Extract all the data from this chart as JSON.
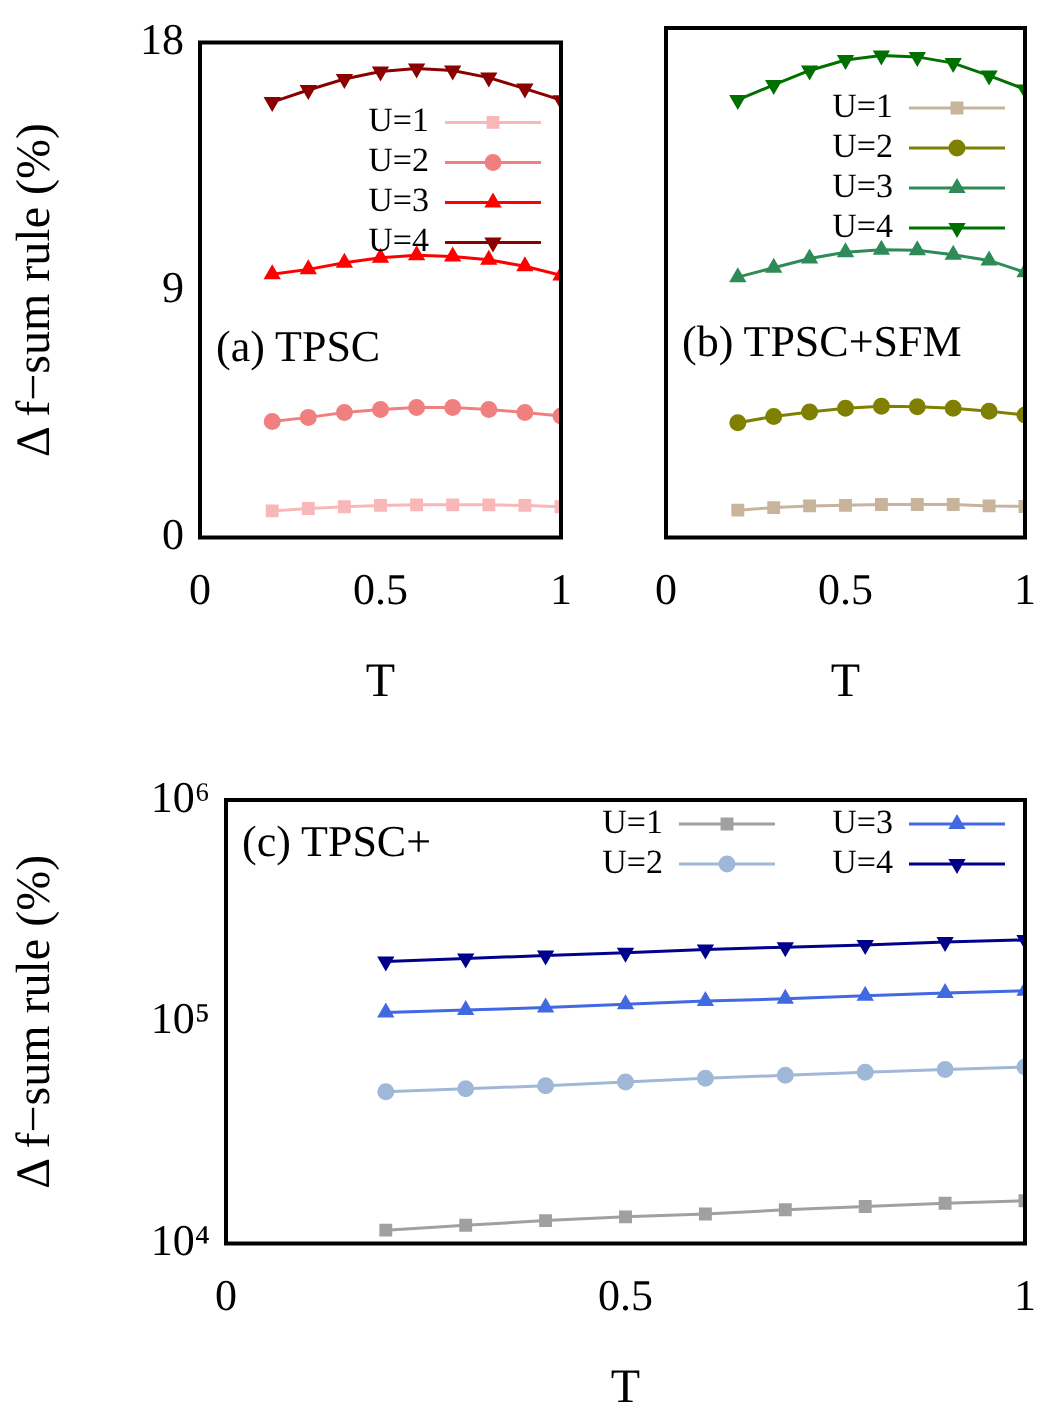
{
  "chart_data": [
    {
      "type": "line",
      "annotations": [
        "(a) TPSC"
      ],
      "xlabel": "T",
      "ylabel": "Δ f−sum rule (%)",
      "x": [
        0.2,
        0.3,
        0.4,
        0.5,
        0.6,
        0.7,
        0.8,
        0.9,
        1.0
      ],
      "xlim": [
        0,
        1
      ],
      "xticks": [
        0,
        0.5,
        1
      ],
      "ylim": [
        0,
        18
      ],
      "yticks": [
        0,
        9,
        18
      ],
      "legend": "top right",
      "grid": false,
      "series": [
        {
          "name": "U=1",
          "color": "#f8b8b8",
          "marker": "square",
          "values": [
            0.97,
            1.06,
            1.12,
            1.17,
            1.19,
            1.19,
            1.19,
            1.17,
            1.12
          ]
        },
        {
          "name": "U=2",
          "color": "#f08080",
          "marker": "circle",
          "values": [
            4.22,
            4.37,
            4.55,
            4.66,
            4.73,
            4.73,
            4.66,
            4.55,
            4.42
          ]
        },
        {
          "name": "U=3",
          "color": "#ff0000",
          "marker": "triangle",
          "values": [
            9.57,
            9.75,
            9.99,
            10.17,
            10.26,
            10.22,
            10.1,
            9.86,
            9.53
          ]
        },
        {
          "name": "U=4",
          "color": "#8b0000",
          "marker": "triangle-down",
          "values": [
            15.83,
            16.27,
            16.67,
            16.94,
            17.05,
            16.98,
            16.72,
            16.32,
            15.9
          ]
        }
      ]
    },
    {
      "type": "line",
      "annotations": [
        "(b) TPSC+SFM"
      ],
      "xlabel": "T",
      "x": [
        0.2,
        0.3,
        0.4,
        0.5,
        0.6,
        0.7,
        0.8,
        0.9,
        1.0
      ],
      "xlim": [
        0,
        1
      ],
      "xticks": [
        0,
        0.5,
        1
      ],
      "ylim": [
        0,
        18
      ],
      "yticks": [
        0,
        9,
        18
      ],
      "tick_labels": "x",
      "legend": "top right",
      "grid": false,
      "series": [
        {
          "name": "U=1",
          "color": "#c8b49a",
          "marker": "square",
          "values": [
            0.97,
            1.06,
            1.12,
            1.14,
            1.17,
            1.17,
            1.17,
            1.12,
            1.1
          ]
        },
        {
          "name": "U=2",
          "color": "#808000",
          "marker": "circle",
          "values": [
            4.06,
            4.28,
            4.44,
            4.57,
            4.64,
            4.62,
            4.57,
            4.46,
            4.33
          ]
        },
        {
          "name": "U=3",
          "color": "#2e8b57",
          "marker": "triangle",
          "values": [
            9.2,
            9.53,
            9.86,
            10.08,
            10.17,
            10.15,
            9.99,
            9.79,
            9.37
          ]
        },
        {
          "name": "U=4",
          "color": "#007000",
          "marker": "triangle-down",
          "values": [
            15.46,
            15.99,
            16.5,
            16.87,
            17.03,
            16.98,
            16.76,
            16.32,
            15.83
          ]
        }
      ]
    },
    {
      "type": "line",
      "annotations": [
        "(c) TPSC+"
      ],
      "xlabel": "T",
      "ylabel": "Δ f−sum rule (%)",
      "log": "y",
      "x": [
        0.2,
        0.3,
        0.4,
        0.5,
        0.6,
        0.7,
        0.8,
        0.9,
        1.0
      ],
      "xlim": [
        0,
        1
      ],
      "xticks": [
        0,
        0.5,
        1
      ],
      "ylim": [
        10000,
        1000000
      ],
      "yticks": [
        {
          "value": 10000,
          "label": "10⁴"
        },
        {
          "value": 100000,
          "label": "10⁵"
        },
        {
          "value": 1000000,
          "label": "10⁶"
        }
      ],
      "legend": "top right",
      "grid": false,
      "series": [
        {
          "name": "U=1",
          "color": "#a0a0a0",
          "marker": "square",
          "values": [
            11500,
            12100,
            12700,
            13200,
            13600,
            14200,
            14700,
            15200,
            15600
          ]
        },
        {
          "name": "U=2",
          "color": "#a0b8d8",
          "marker": "circle",
          "values": [
            48400,
            49900,
            51500,
            53500,
            55600,
            57400,
            59200,
            61000,
            62500
          ]
        },
        {
          "name": "U=3",
          "color": "#4169e1",
          "marker": "triangle",
          "values": [
            110000,
            113000,
            116000,
            120000,
            124000,
            127000,
            131000,
            135000,
            138000
          ]
        },
        {
          "name": "U=4",
          "color": "#00008b",
          "marker": "triangle-down",
          "values": [
            187000,
            193000,
            199000,
            205000,
            212000,
            217000,
            222000,
            229000,
            234000
          ]
        }
      ]
    }
  ]
}
